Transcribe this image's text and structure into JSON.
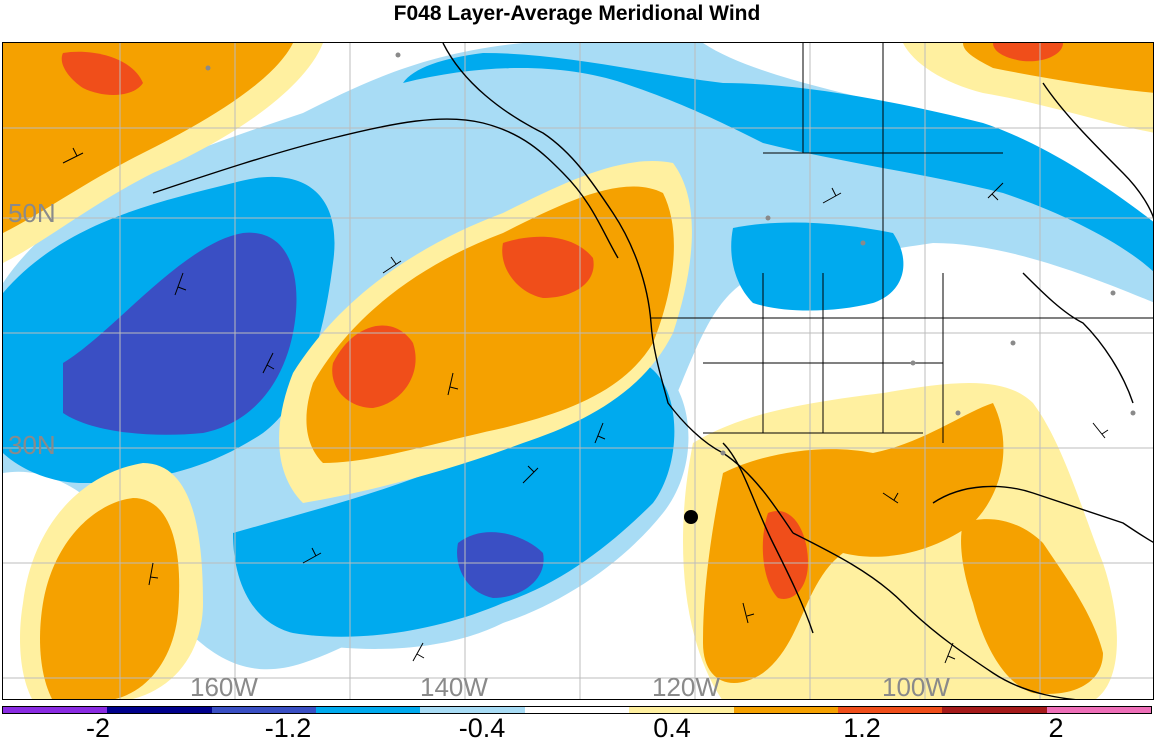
{
  "title": "F048 Layer-Average Meridional Wind",
  "lat_labels": [
    "50N",
    "30N"
  ],
  "lon_labels": [
    "160W",
    "140W",
    "120W",
    "100W"
  ],
  "colorbar": {
    "colors": [
      "#8a2be2",
      "#00008b",
      "#3a4fc4",
      "#00aaee",
      "#a8dcf5",
      "#ffffff",
      "#fff0a0",
      "#f5a100",
      "#f04e1a",
      "#a51a1a",
      "#ee6fb8"
    ],
    "labels": [
      "-2",
      "-1.2",
      "-0.4",
      "0.4",
      "1.2",
      "2"
    ]
  },
  "fills": {
    "strong_neg": "#3a4fc4",
    "neg": "#00aaee",
    "weak_neg": "#a8dcf5",
    "weak_pos": "#fff0a0",
    "pos": "#f5a100",
    "strong_pos": "#f04e1a"
  }
}
